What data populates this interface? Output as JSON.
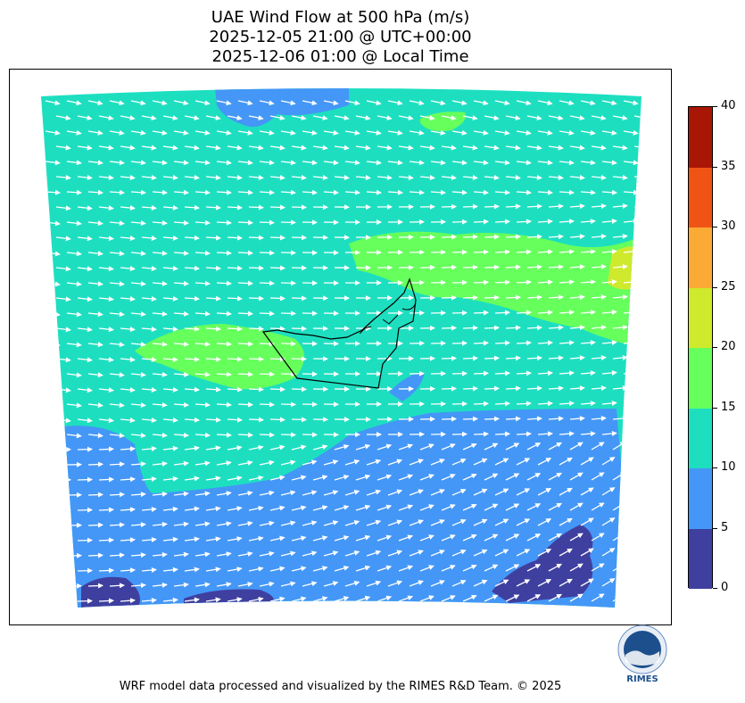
{
  "title": {
    "line1": "UAE Wind Flow at 500 hPa (m/s)",
    "line2": "2025-12-05 21:00 @ UTC+00:00",
    "line3": "2025-12-06 01:00 @ Local Time"
  },
  "colorbar": {
    "ticks": [
      "0",
      "5",
      "10",
      "15",
      "20",
      "25",
      "30",
      "35",
      "40"
    ],
    "colors": [
      "#3f3fa0",
      "#4497f6",
      "#1ddfc0",
      "#66ff5c",
      "#cfe92d",
      "#fbaa35",
      "#f05414",
      "#a81605"
    ]
  },
  "map": {
    "colors": {
      "calm": "#3f3fa0",
      "light": "#4497f6",
      "moderate": "#1ddfc0",
      "fresh": "#66ff5c",
      "strong": "#cfe92d",
      "gale": "#fbaa35",
      "arrow": "#ffffff",
      "border": "#000000"
    }
  },
  "logo": {
    "text": "RIMES"
  },
  "footer": "WRF model data processed and visualized by the RIMES R&D Team. © 2025"
}
